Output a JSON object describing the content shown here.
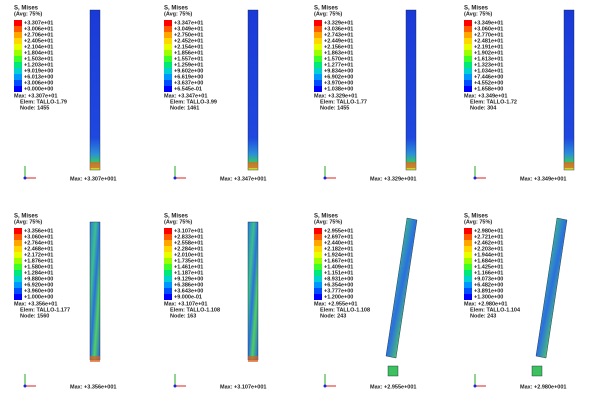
{
  "panels": [
    {
      "title": "S, Mises",
      "avg": "(Avg: 75%)",
      "legend": [
        "+3.307e+01",
        "+3.006e+01",
        "+2.706e+01",
        "+2.405e+01",
        "+2.104e+01",
        "+1.804e+01",
        "+1.503e+01",
        "+1.203e+01",
        "+9.019e+00",
        "+6.013e+00",
        "+3.006e+00",
        "+0.000e+00"
      ],
      "max": "Max: +3.307e+01",
      "elem": "Elem: TALLO-1.79",
      "node": "Node: 1455",
      "bottom_max": "Max: +3.307e+001"
    },
    {
      "title": "S, Mises",
      "avg": "(Avg: 75%)",
      "legend": [
        "+3.347e+01",
        "+3.049e+01",
        "+2.750e+01",
        "+2.452e+01",
        "+2.154e+01",
        "+1.856e+01",
        "+1.557e+01",
        "+1.259e+01",
        "+9.602e+00",
        "+6.619e+00",
        "+3.637e+00",
        "+6.545e-01"
      ],
      "max": "Max: +3.347e+01",
      "elem": "Elem: TALLO-3.99",
      "node": "Node: 1461",
      "bottom_max": "Max: +3.347e+001"
    },
    {
      "title": "S, Mises",
      "avg": "(Avg: 75%)",
      "legend": [
        "+3.329e+01",
        "+3.036e+01",
        "+2.743e+01",
        "+2.449e+01",
        "+2.156e+01",
        "+1.863e+01",
        "+1.570e+01",
        "+1.277e+01",
        "+9.834e+00",
        "+6.902e+00",
        "+3.970e+00",
        "+1.038e+00"
      ],
      "max": "Max: +3.329e+01",
      "elem": "Elem: TALLO-1.77",
      "node": "Node: 1455",
      "bottom_max": "Max: +3.329e+001"
    },
    {
      "title": "S, Mises",
      "avg": "(Avg: 75%)",
      "legend": [
        "+3.349e+01",
        "+3.060e+01",
        "+2.770e+01",
        "+2.481e+01",
        "+2.191e+01",
        "+1.902e+01",
        "+1.613e+01",
        "+1.323e+01",
        "+1.034e+01",
        "+7.446e+00",
        "+4.552e+00",
        "+1.658e+00"
      ],
      "max": "Max: +3.349e+01",
      "elem": "Elem: TALLO-1.72",
      "node": "Node: 304",
      "bottom_max": "Max: +3.349e+001"
    },
    {
      "title": "S, Mises",
      "avg": "(Avg: 75%)",
      "legend": [
        "+3.356e+01",
        "+3.060e+01",
        "+2.764e+01",
        "+2.468e+01",
        "+2.172e+01",
        "+1.876e+01",
        "+1.580e+01",
        "+1.284e+01",
        "+9.880e+00",
        "+6.920e+00",
        "+3.960e+00",
        "+1.000e+00"
      ],
      "max": "Max: +3.356e+01",
      "elem": "Elem: TALLO-1.177",
      "node": "Node: 1560",
      "bottom_max": "Max: +3.356e+001"
    },
    {
      "title": "S, Mises",
      "avg": "(Avg: 75%)",
      "legend": [
        "+3.107e+01",
        "+2.833e+01",
        "+2.558e+01",
        "+2.284e+01",
        "+2.010e+01",
        "+1.735e+01",
        "+1.461e+01",
        "+1.187e+01",
        "+9.129e+00",
        "+6.386e+00",
        "+3.643e+00",
        "+9.000e-01"
      ],
      "max": "Max: +3.107e+01",
      "elem": "Elem: TALLO-1.108",
      "node": "Node: 163",
      "bottom_max": "Max: +3.107e+001"
    },
    {
      "title": "S, Mises",
      "avg": "(Avg: 75%)",
      "legend": [
        "+2.955e+01",
        "+2.697e+01",
        "+2.440e+01",
        "+2.182e+01",
        "+1.924e+01",
        "+1.667e+01",
        "+1.409e+01",
        "+1.151e+01",
        "+8.931e+00",
        "+6.354e+00",
        "+3.777e+00",
        "+1.200e+00"
      ],
      "max": "Max: +2.955e+01",
      "elem": "Elem: TALLO-1.108",
      "node": "Node: 243",
      "bottom_max": "Max: +2.955e+001"
    },
    {
      "title": "S, Mises",
      "avg": "(Avg: 75%)",
      "legend": [
        "+2.980e+01",
        "+2.721e+01",
        "+2.462e+01",
        "+2.203e+01",
        "+1.944e+01",
        "+1.684e+01",
        "+1.425e+01",
        "+1.166e+01",
        "+9.073e+00",
        "+6.482e+00",
        "+3.891e+00",
        "+1.300e+00"
      ],
      "max": "Max: +2.980e+01",
      "elem": "Elem: TALLO-1.104",
      "node": "Node: 243",
      "bottom_max": "Max: +2.980e+001"
    }
  ]
}
